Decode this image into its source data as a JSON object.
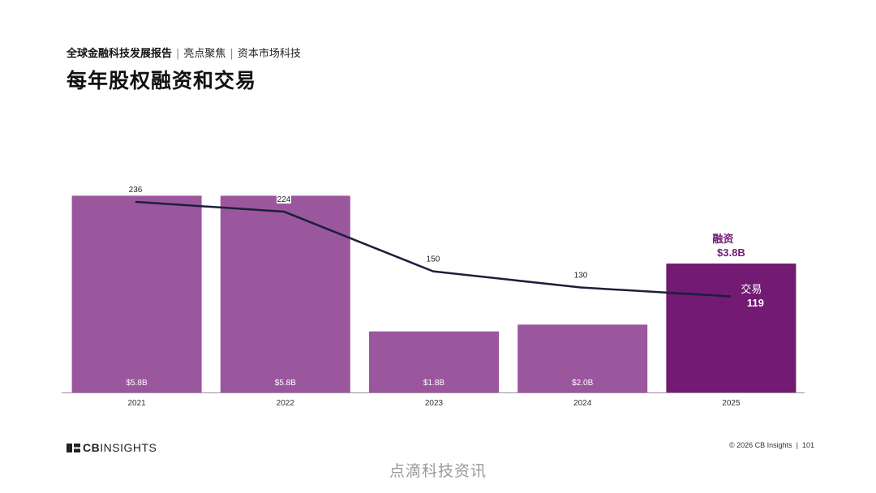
{
  "header": {
    "report_title": "全球金融科技发展报告",
    "section": "亮点聚焦",
    "topic": "资本市场科技"
  },
  "page_title": "每年股权融资和交易",
  "chart_data": {
    "type": "bar",
    "categories": [
      "2021",
      "2022",
      "2023",
      "2024",
      "2025"
    ],
    "series": [
      {
        "name": "融资",
        "kind": "bar",
        "values": [
          5.8,
          5.8,
          1.8,
          2.0,
          3.8
        ],
        "labels": [
          "$5.8B",
          "$5.8B",
          "$1.8B",
          "$2.0B",
          "$3.8B"
        ]
      },
      {
        "name": "交易",
        "kind": "line",
        "values": [
          236,
          224,
          150,
          130,
          119
        ],
        "labels": [
          "236",
          "224",
          "150",
          "130",
          "119"
        ]
      }
    ],
    "bar_ylim": [
      0,
      6.0
    ],
    "line_ylim": [
      0,
      236
    ],
    "callout": {
      "funding_label": "融资",
      "funding_value": "$3.8B",
      "deals_label": "交易",
      "deals_value": "119"
    },
    "colors": {
      "bar": "#9b579d",
      "bar_highlight": "#731a72",
      "line": "#1b1f3b",
      "axis": "#9f8fa3",
      "callout": "#731a72"
    },
    "title": "每年股权融资和交易",
    "xlabel": "",
    "ylabel": "",
    "grid": false,
    "legend": "none"
  },
  "footer": {
    "brand_bold": "CB",
    "brand_rest": "INSIGHTS",
    "copyright": "© 2026 CB Insights",
    "page_number": "101"
  },
  "watermark": "点滴科技资讯"
}
